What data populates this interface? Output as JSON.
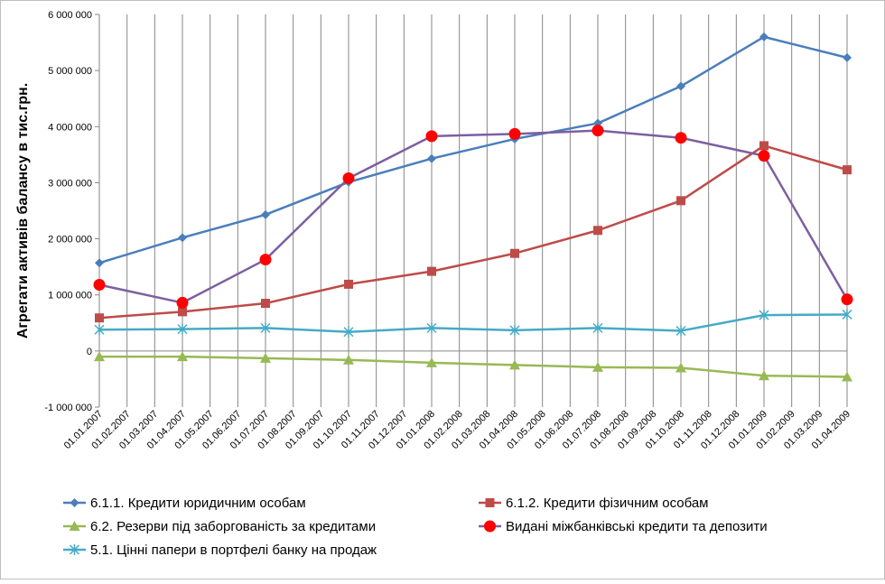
{
  "chart_data": {
    "type": "line",
    "title": "",
    "xlabel": "",
    "ylabel": "Агрегати активів балансу в тис.грн.",
    "ylim": [
      -1000000,
      6000000
    ],
    "yticks": [
      {
        "value": -1000000,
        "label": "-1 000 000"
      },
      {
        "value": 0,
        "label": "0"
      },
      {
        "value": 1000000,
        "label": "1 000 000"
      },
      {
        "value": 2000000,
        "label": "2 000 000"
      },
      {
        "value": 3000000,
        "label": "3 000 000"
      },
      {
        "value": 4000000,
        "label": "4 000 000"
      },
      {
        "value": 5000000,
        "label": "5 000 000"
      },
      {
        "value": 6000000,
        "label": "6 000 000"
      }
    ],
    "grid": "vertical",
    "legend_position": "bottom",
    "categories": [
      "01.01.2007",
      "01.02.2007",
      "01.03.2007",
      "01.04.2007",
      "01.05.2007",
      "01.06.2007",
      "01.07.2007",
      "01.08.2007",
      "01.09.2007",
      "01.10.2007",
      "01.11.2007",
      "01.12.2007",
      "01.01.2008",
      "01.02.2008",
      "01.03.2008",
      "01.04.2008",
      "01.05.2008",
      "01.06.2008",
      "01.07.2008",
      "01.08.2008",
      "01.09.2008",
      "01.10.2008",
      "01.11.2008",
      "01.12.2008",
      "01.01.2009",
      "01.02.2009",
      "01.03.2009",
      "01.04.2009"
    ],
    "series": [
      {
        "name": "6.1.1. Кредити юридичним особам",
        "color": "#4A7EBB",
        "marker": "diamond",
        "x": [
          "01.01.2007",
          "01.04.2007",
          "01.07.2007",
          "01.10.2007",
          "01.01.2008",
          "01.04.2008",
          "01.07.2008",
          "01.10.2008",
          "01.01.2009",
          "01.04.2009"
        ],
        "values": [
          1570000,
          2020000,
          2430000,
          3010000,
          3430000,
          3780000,
          4060000,
          4720000,
          5600000,
          5230000
        ]
      },
      {
        "name": "6.1.2. Кредити фізичним особам",
        "color": "#BE4B48",
        "marker": "square",
        "x": [
          "01.01.2007",
          "01.04.2007",
          "01.07.2007",
          "01.10.2007",
          "01.01.2008",
          "01.04.2008",
          "01.07.2008",
          "01.10.2008",
          "01.01.2009",
          "01.04.2009"
        ],
        "values": [
          590000,
          700000,
          850000,
          1190000,
          1420000,
          1740000,
          2150000,
          2680000,
          3660000,
          3230000
        ]
      },
      {
        "name": "6.2. Резерви під заборгованість за кредитами",
        "color": "#98B954",
        "marker": "triangle",
        "x": [
          "01.01.2007",
          "01.04.2007",
          "01.07.2007",
          "01.10.2007",
          "01.01.2008",
          "01.04.2008",
          "01.07.2008",
          "01.10.2008",
          "01.01.2009",
          "01.04.2009"
        ],
        "values": [
          -100000,
          -100000,
          -130000,
          -160000,
          -210000,
          -250000,
          -290000,
          -300000,
          -440000,
          -460000
        ]
      },
      {
        "name": "Видані міжбанківські кредити та депозити",
        "color": "#7D5FA0",
        "marker": "circle",
        "marker_color": "#FF0000",
        "x": [
          "01.01.2007",
          "01.04.2007",
          "01.07.2007",
          "01.10.2007",
          "01.01.2008",
          "01.04.2008",
          "01.07.2008",
          "01.10.2008",
          "01.01.2009",
          "01.04.2009"
        ],
        "values": [
          1180000,
          860000,
          1630000,
          3080000,
          3830000,
          3870000,
          3930000,
          3800000,
          3480000,
          920000
        ]
      },
      {
        "name": "5.1. Цінні папери в портфелі банку на продаж",
        "color": "#46AAC5",
        "marker": "star",
        "x": [
          "01.01.2007",
          "01.04.2007",
          "01.07.2007",
          "01.10.2007",
          "01.01.2008",
          "01.04.2008",
          "01.07.2008",
          "01.10.2008",
          "01.01.2009",
          "01.04.2009"
        ],
        "values": [
          380000,
          390000,
          410000,
          340000,
          410000,
          370000,
          410000,
          360000,
          640000,
          650000
        ]
      }
    ]
  }
}
